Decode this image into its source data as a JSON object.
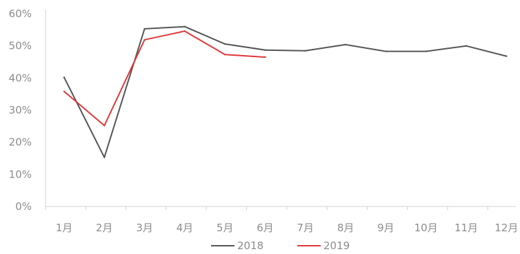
{
  "chart_data": {
    "type": "line",
    "categories": [
      "1月",
      "2月",
      "3月",
      "4月",
      "5月",
      "6月",
      "7月",
      "8月",
      "9月",
      "10月",
      "11月",
      "12月"
    ],
    "series": [
      {
        "name": "2018",
        "color": "#555555",
        "values": [
          40.2,
          15.3,
          55.3,
          56.0,
          50.6,
          48.7,
          48.5,
          50.4,
          48.3,
          48.3,
          50.0,
          46.8
        ]
      },
      {
        "name": "2019",
        "color": "#e0383a",
        "values": [
          35.8,
          25.2,
          51.9,
          54.6,
          47.3,
          46.5,
          null,
          null,
          null,
          null,
          null,
          null
        ]
      }
    ],
    "y_ticks": [
      "0%",
      "10%",
      "20%",
      "30%",
      "40%",
      "50%",
      "60%"
    ],
    "ylim": [
      0,
      60
    ],
    "y_unit": "%",
    "grid": false,
    "legend_position": "bottom-center"
  }
}
